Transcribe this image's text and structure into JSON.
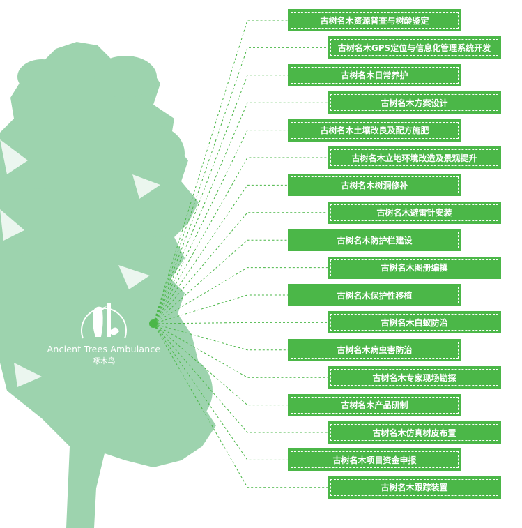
{
  "colors": {
    "box": "#4bb748",
    "tree": "#9dd3ae",
    "line": "#4bb748"
  },
  "logo": {
    "english": "Ancient Trees Ambulance",
    "chinese": "啄木鸟",
    "icon": "woodpecker-icon"
  },
  "items": [
    {
      "label": "古树名木资源普查与树龄鉴定",
      "side": "left"
    },
    {
      "label": "古树名木GPS定位与信息化管理系统开发",
      "side": "right"
    },
    {
      "label": "古树名木日常养护",
      "side": "left"
    },
    {
      "label": "古树名木方案设计",
      "side": "right"
    },
    {
      "label": "古树名木土壤改良及配方施肥",
      "side": "left"
    },
    {
      "label": "古树名木立地环境改造及景观提升",
      "side": "right"
    },
    {
      "label": "古树名木树洞修补",
      "side": "left"
    },
    {
      "label": "古树名木避雷针安装",
      "side": "right"
    },
    {
      "label": "古树名木防护栏建设",
      "side": "left"
    },
    {
      "label": "古树名木图册编撰",
      "side": "right"
    },
    {
      "label": "古树名木保护性移植",
      "side": "left"
    },
    {
      "label": "古树名木白蚁防治",
      "side": "right"
    },
    {
      "label": "古树名木病虫害防治",
      "side": "left"
    },
    {
      "label": "古树名木专家现场勘探",
      "side": "right"
    },
    {
      "label": "古树名木产品研制",
      "side": "left"
    },
    {
      "label": "古树名木仿真树皮布置",
      "side": "right"
    },
    {
      "label": "古树名木项目资金申报",
      "side": "left"
    },
    {
      "label": "古树名木跟踪装置",
      "side": "right"
    }
  ]
}
